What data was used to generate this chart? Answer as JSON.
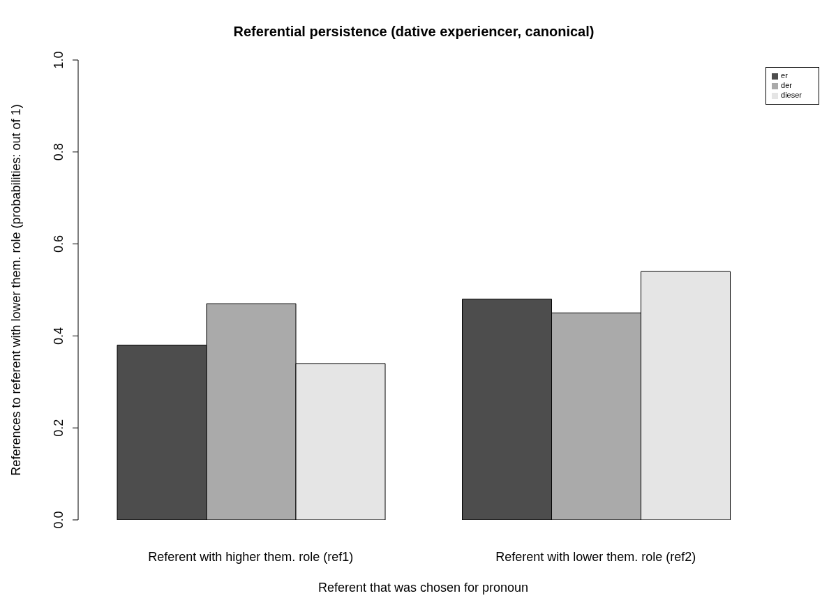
{
  "chart_data": {
    "type": "bar",
    "title": "Referential persistence (dative experiencer, canonical)",
    "xlabel": "Referent that was chosen for pronoun",
    "ylabel": "References to referent with lower them. role (probabilities: out of 1)",
    "categories": [
      "Referent with higher them. role (ref1)",
      "Referent with lower them. role (ref2)"
    ],
    "series": [
      {
        "name": "er",
        "color": "#4d4d4d",
        "values": [
          0.38,
          0.48
        ]
      },
      {
        "name": "der",
        "color": "#aaaaaa",
        "values": [
          0.47,
          0.45
        ]
      },
      {
        "name": "dieser",
        "color": "#e5e5e5",
        "values": [
          0.34,
          0.54
        ]
      }
    ],
    "ylim": [
      0,
      1
    ],
    "yticks": [
      {
        "value": 0,
        "label": "0.0"
      },
      0.2,
      0.4,
      0.6,
      0.8,
      {
        "value": 1,
        "label": "1.0"
      }
    ],
    "legend": "top right"
  }
}
